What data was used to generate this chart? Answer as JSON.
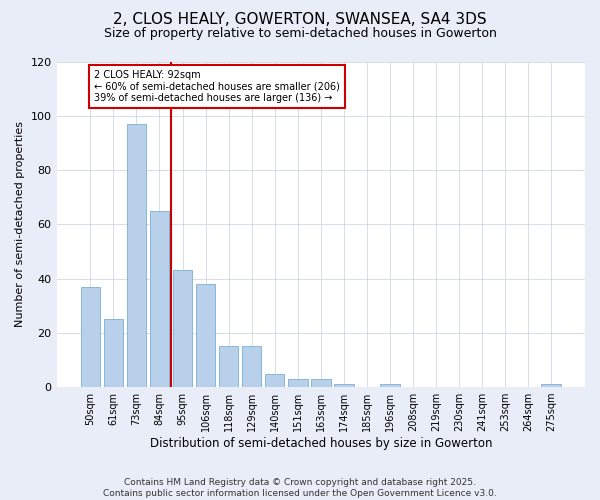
{
  "title": "2, CLOS HEALY, GOWERTON, SWANSEA, SA4 3DS",
  "subtitle": "Size of property relative to semi-detached houses in Gowerton",
  "xlabel": "Distribution of semi-detached houses by size in Gowerton",
  "ylabel": "Number of semi-detached properties",
  "categories": [
    "50sqm",
    "61sqm",
    "73sqm",
    "84sqm",
    "95sqm",
    "106sqm",
    "118sqm",
    "129sqm",
    "140sqm",
    "151sqm",
    "163sqm",
    "174sqm",
    "185sqm",
    "196sqm",
    "208sqm",
    "219sqm",
    "230sqm",
    "241sqm",
    "253sqm",
    "264sqm",
    "275sqm"
  ],
  "values": [
    37,
    25,
    97,
    65,
    43,
    38,
    15,
    15,
    5,
    3,
    3,
    1,
    0,
    1,
    0,
    0,
    0,
    0,
    0,
    0,
    1
  ],
  "bar_color": "#b8d0ea",
  "bar_edge_color": "#7aafd4",
  "vline_color": "#cc0000",
  "vline_x_index": 3.5,
  "annotation_text": "2 CLOS HEALY: 92sqm\n← 60% of semi-detached houses are smaller (206)\n39% of semi-detached houses are larger (136) →",
  "annotation_box_color": "#ffffff",
  "annotation_box_edge": "#cc0000",
  "ylim": [
    0,
    120
  ],
  "yticks": [
    0,
    20,
    40,
    60,
    80,
    100,
    120
  ],
  "footer_text": "Contains HM Land Registry data © Crown copyright and database right 2025.\nContains public sector information licensed under the Open Government Licence v3.0.",
  "background_color": "#e8edf8",
  "plot_background_color": "#ffffff",
  "title_fontsize": 11,
  "subtitle_fontsize": 9,
  "footer_fontsize": 6.5
}
